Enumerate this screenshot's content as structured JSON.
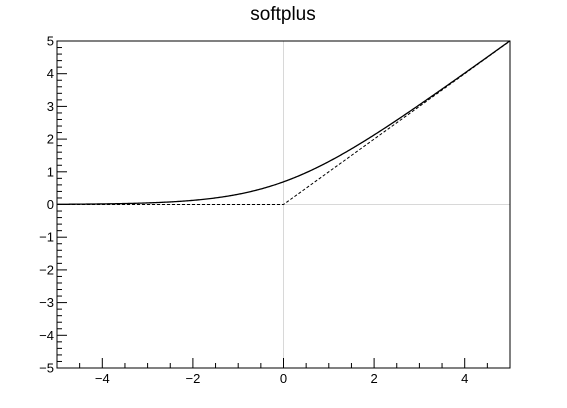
{
  "chart_data": {
    "type": "line",
    "title": "softplus",
    "xlabel": "",
    "ylabel": "",
    "xlim": [
      -5,
      5
    ],
    "ylim": [
      -5,
      5
    ],
    "grid": false,
    "x_tick_labels": [
      "−4",
      "−2",
      "0",
      "2",
      "4"
    ],
    "x_tick_values": [
      -4,
      -2,
      0,
      2,
      4
    ],
    "y_tick_labels": [
      "−5",
      "−4",
      "−3",
      "−2",
      "−1",
      "0",
      "1",
      "2",
      "3",
      "4",
      "5"
    ],
    "y_tick_values": [
      -5,
      -4,
      -3,
      -2,
      -1,
      0,
      1,
      2,
      3,
      4,
      5
    ],
    "zero_lines": {
      "color": "#d8d8d8"
    },
    "series": [
      {
        "style": "solid",
        "color": "#000000",
        "x": [
          -5,
          -4.5,
          -4,
          -3.5,
          -3,
          -2.5,
          -2,
          -1.5,
          -1,
          -0.5,
          0,
          0.5,
          1,
          1.5,
          2,
          2.5,
          3,
          3.5,
          4,
          4.5,
          5
        ],
        "y": [
          0.0067,
          0.011,
          0.018,
          0.0298,
          0.0486,
          0.0789,
          0.1269,
          0.2014,
          0.3133,
          0.4741,
          0.6931,
          0.9741,
          1.3133,
          1.7014,
          2.1269,
          2.5789,
          3.0486,
          3.5298,
          4.0181,
          4.511,
          5.0067
        ]
      },
      {
        "style": "dashed",
        "color": "#000000",
        "x": [
          -5,
          0,
          5
        ],
        "y": [
          0,
          0,
          5
        ]
      }
    ]
  }
}
